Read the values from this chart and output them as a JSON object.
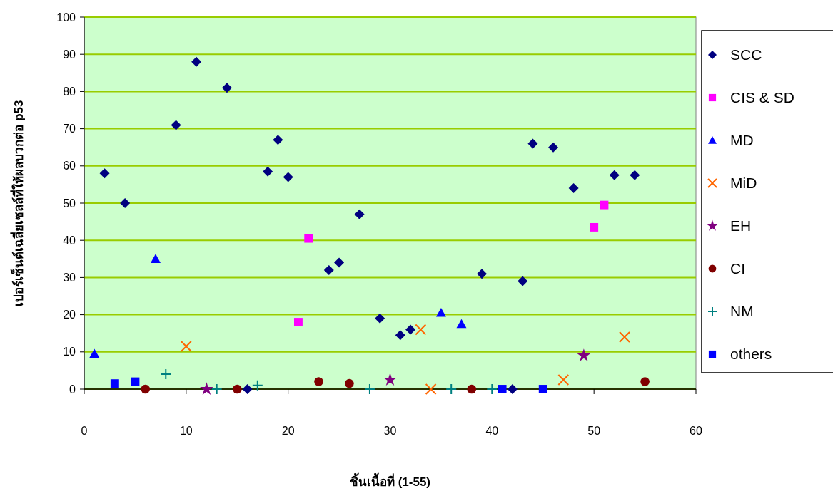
{
  "chart_data": {
    "type": "scatter",
    "xlabel": "ชิ้นเนื้อที่ (1-55)",
    "ylabel": "เปอร์เซ็นต์เฉลี่ยเซลล์ที่ให้ผลบวกต่อ p53",
    "xlim": [
      0,
      60
    ],
    "xticks": [
      0,
      10,
      20,
      30,
      40,
      50,
      60
    ],
    "ylim": [
      0,
      100
    ],
    "yticks": [
      0,
      10,
      20,
      30,
      40,
      50,
      60,
      70,
      80,
      90,
      100
    ],
    "grid": "y",
    "legend": "right",
    "series": [
      {
        "name": "SCC",
        "color": "#000080",
        "marker": "diamond",
        "x": [
          2,
          4,
          9,
          11,
          14,
          16,
          18,
          19,
          20,
          24,
          25,
          27,
          29,
          31,
          32,
          39,
          42,
          43,
          44,
          46,
          48,
          52,
          54
        ],
        "values": [
          58,
          50,
          71,
          88,
          81,
          0,
          58.5,
          67,
          57,
          32,
          34,
          47,
          19,
          14.5,
          16,
          31,
          0,
          29,
          66,
          65,
          54,
          57.5,
          57.5
        ]
      },
      {
        "name": "CIS & SD",
        "color": "#ff00ff",
        "marker": "square",
        "x": [
          21,
          22,
          50,
          51
        ],
        "values": [
          18,
          40.5,
          43.5,
          49.5
        ]
      },
      {
        "name": "MD",
        "color": "#0000ff",
        "marker": "triangle",
        "x": [
          1,
          7,
          35,
          37
        ],
        "values": [
          9.5,
          35,
          20.5,
          17.5
        ]
      },
      {
        "name": "MiD",
        "color": "#ff6600",
        "marker": "cross",
        "x": [
          10,
          33,
          34,
          47,
          53
        ],
        "values": [
          11.5,
          16,
          0,
          2.5,
          14
        ]
      },
      {
        "name": "EH",
        "color": "#800080",
        "marker": "star",
        "x": [
          12,
          30,
          49
        ],
        "values": [
          0,
          2.5,
          9
        ]
      },
      {
        "name": "CI",
        "color": "#800000",
        "marker": "circle",
        "x": [
          6,
          15,
          23,
          26,
          38,
          55
        ],
        "values": [
          0,
          0,
          2,
          1.5,
          0,
          2
        ]
      },
      {
        "name": "NM",
        "color": "#008080",
        "marker": "plus",
        "x": [
          8,
          13,
          17,
          28,
          36,
          40
        ],
        "values": [
          4,
          0,
          1,
          0,
          0,
          0
        ]
      },
      {
        "name": "others",
        "color": "#0000ff",
        "marker": "square",
        "x": [
          3,
          5,
          41,
          45
        ],
        "values": [
          1.5,
          2,
          0,
          0
        ]
      }
    ]
  }
}
